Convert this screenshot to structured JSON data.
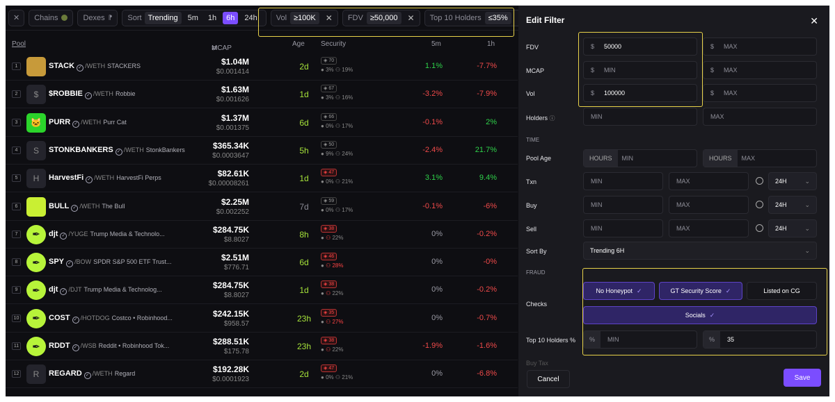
{
  "topbar": {
    "close": "✕",
    "chains_label": "Chains",
    "dexes_label": "Dexes",
    "sort_label": "Sort",
    "sort_value": "Trending",
    "timeframes": [
      "5m",
      "1h",
      "6h",
      "24h"
    ],
    "filters": [
      {
        "name": "Vol",
        "value": "≥100K"
      },
      {
        "name": "FDV",
        "value": "≥50,000"
      },
      {
        "name": "Top 10 Holders",
        "value": "≤35%"
      }
    ]
  },
  "table": {
    "headers": {
      "pool": "Pool",
      "mcap": "MCAP",
      "age": "Age",
      "security": "Security",
      "p5m": "5m",
      "p1h": "1h"
    },
    "rows": [
      {
        "rank": "1",
        "symbol": "STACK",
        "pair": "WETH",
        "name": "STACKERS",
        "mcap": "$1.04M",
        "price": "$0.001414",
        "age": "2d",
        "sec": "70",
        "sec_l1": "3%",
        "sec_l2": "19%",
        "p5m": "1.1%",
        "p1h": "-7.7%"
      },
      {
        "rank": "2",
        "symbol": "$ROBBIE",
        "pair": "WETH",
        "name": "Robbie",
        "mcap": "$1.63M",
        "price": "$0.001626",
        "age": "1d",
        "sec": "67",
        "sec_l1": "3%",
        "sec_l2": "16%",
        "p5m": "-3.2%",
        "p1h": "-7.9%"
      },
      {
        "rank": "3",
        "symbol": "PURR",
        "pair": "WETH",
        "name": "Purr Cat",
        "mcap": "$1.37M",
        "price": "$0.001375",
        "age": "6d",
        "sec": "66",
        "sec_l1": "0%",
        "sec_l2": "17%",
        "p5m": "-0.1%",
        "p1h": "2%"
      },
      {
        "rank": "4",
        "symbol": "STONKBANKERS",
        "pair": "WETH",
        "name": "StonkBankers",
        "mcap": "$365.34K",
        "price": "$0.0003647",
        "age": "5h",
        "sec": "50",
        "sec_l1": "9%",
        "sec_l2": "24%",
        "p5m": "-2.4%",
        "p1h": "21.7%"
      },
      {
        "rank": "5",
        "symbol": "HarvestFi",
        "pair": "WETH",
        "name": "HarvestFi Perps",
        "mcap": "$82.61K",
        "price": "$0.00008261",
        "age": "1d",
        "sec": "47",
        "sec_l1": "0%",
        "sec_l2": "21%",
        "p5m": "3.1%",
        "p1h": "9.4%"
      },
      {
        "rank": "6",
        "symbol": "BULL",
        "pair": "WETH",
        "name": "The Bull",
        "mcap": "$2.25M",
        "price": "$0.002252",
        "age": "7d",
        "sec": "59",
        "sec_l1": "0%",
        "sec_l2": "17%",
        "p5m": "-0.1%",
        "p1h": "-6%"
      },
      {
        "rank": "7",
        "symbol": "djt",
        "pair": "YUGE",
        "name": "Trump Media & Technolo...",
        "mcap": "$284.75K",
        "price": "$8.8027",
        "age": "8h",
        "sec": "38",
        "sec_l1": "",
        "sec_l2": "22%",
        "p5m": "0%",
        "p1h": "-0.2%"
      },
      {
        "rank": "8",
        "symbol": "SPY",
        "pair": "BOW",
        "name": "SPDR S&P 500 ETF Trust...",
        "mcap": "$2.51M",
        "price": "$776.71",
        "age": "6d",
        "sec": "46",
        "sec_l1": "",
        "sec_l2": "28%",
        "p5m": "0%",
        "p1h": "-0%"
      },
      {
        "rank": "9",
        "symbol": "djt",
        "pair": "DJT",
        "name": "Trump Media & Technolog...",
        "mcap": "$284.75K",
        "price": "$8.8027",
        "age": "1d",
        "sec": "38",
        "sec_l1": "",
        "sec_l2": "22%",
        "p5m": "0%",
        "p1h": "-0.2%"
      },
      {
        "rank": "10",
        "symbol": "COST",
        "pair": "HOTDOG",
        "name": "Costco • Robinhood...",
        "mcap": "$242.15K",
        "price": "$958.57",
        "age": "23h",
        "sec": "35",
        "sec_l1": "",
        "sec_l2": "27%",
        "p5m": "0%",
        "p1h": "-0.7%"
      },
      {
        "rank": "11",
        "symbol": "RDDT",
        "pair": "WSB",
        "name": "Reddit • Robinhood Tok...",
        "mcap": "$288.51K",
        "price": "$175.78",
        "age": "23h",
        "sec": "38",
        "sec_l1": "",
        "sec_l2": "22%",
        "p5m": "-1.9%",
        "p1h": "-1.6%"
      },
      {
        "rank": "12",
        "symbol": "REGARD",
        "pair": "WETH",
        "name": "Regard",
        "mcap": "$192.28K",
        "price": "$0.0001923",
        "age": "2d",
        "sec": "47",
        "sec_l1": "0%",
        "sec_l2": "21%",
        "p5m": "0%",
        "p1h": "-6.8%"
      }
    ]
  },
  "panel": {
    "title": "Edit Filter",
    "close": "✕",
    "fdv_label": "FDV",
    "fdv_min": "50000",
    "fdv_max_ph": "MAX",
    "mcap_label": "MCAP",
    "mcap_min_ph": "MIN",
    "mcap_max_ph": "MAX",
    "vol_label": "Vol",
    "vol_min": "100000",
    "vol_max_ph": "MAX",
    "dollar": "$",
    "pct": "%",
    "holders_label": "Holders",
    "holders_min_ph": "MIN",
    "holders_max_ph": "MAX",
    "time_section": "TIME",
    "pool_age_label": "Pool Age",
    "hours": "HOURS",
    "age_min_ph": "MIN",
    "age_max_ph": "MAX",
    "txn_label": "Txn",
    "buy_label": "Buy",
    "sell_label": "Sell",
    "min_ph": "MIN",
    "max_ph": "MAX",
    "period": "24H",
    "sort_label": "Sort By",
    "sort_value": "Trending 6H",
    "fraud_section": "FRAUD",
    "checks_label": "Checks",
    "checks": [
      "No Honeypot",
      "GT Security Score",
      "Listed on CG",
      "Socials"
    ],
    "top10_label": "Top 10 Holders %",
    "top10_min_ph": "MIN",
    "top10_max": "35",
    "buytax_label": "Buy Tax",
    "cancel": "Cancel",
    "save": "Save"
  },
  "colors": {
    "accent": "#7b4dff",
    "positive": "#2fd24a",
    "negative": "#f04a4a",
    "highlight": "#e8d24a"
  }
}
